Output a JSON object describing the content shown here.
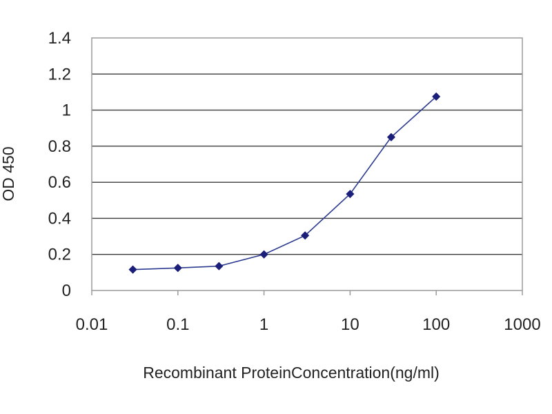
{
  "chart_data": {
    "type": "line",
    "title": "",
    "xlabel": "Recombinant ProteinConcentration(ng/ml)",
    "ylabel": "OD 450",
    "x_scale": "log",
    "xlim": [
      0.01,
      1000
    ],
    "ylim": [
      0,
      1.4
    ],
    "x_ticks": [
      {
        "value": 0.01,
        "label": "0.01"
      },
      {
        "value": 0.1,
        "label": "0.1"
      },
      {
        "value": 1,
        "label": "1"
      },
      {
        "value": 10,
        "label": "10"
      },
      {
        "value": 100,
        "label": "100"
      },
      {
        "value": 1000,
        "label": "1000"
      }
    ],
    "y_ticks": [
      {
        "value": 0,
        "label": "0"
      },
      {
        "value": 0.2,
        "label": "0.2"
      },
      {
        "value": 0.4,
        "label": "0.4"
      },
      {
        "value": 0.6,
        "label": "0.6"
      },
      {
        "value": 0.8,
        "label": "0.8"
      },
      {
        "value": 1,
        "label": "1"
      },
      {
        "value": 1.2,
        "label": "1.2"
      },
      {
        "value": 1.4,
        "label": "1.4"
      }
    ],
    "grid": "horizontal",
    "legend": "none",
    "series": [
      {
        "color": "#2b3a8f",
        "x": [
          0.03,
          0.1,
          0.3,
          1,
          3,
          10,
          30,
          100
        ],
        "y": [
          0.116,
          0.125,
          0.135,
          0.2,
          0.305,
          0.535,
          0.85,
          1.075
        ]
      }
    ]
  }
}
